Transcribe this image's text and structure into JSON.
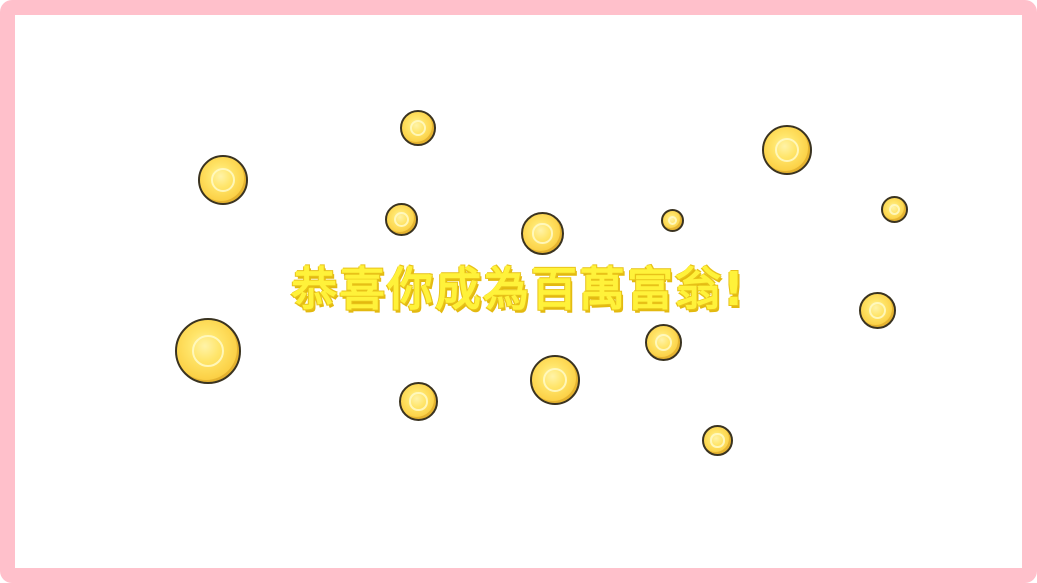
{
  "screen": {
    "message": "恭喜你成為百萬富翁!"
  },
  "colors": {
    "frame_border": "#ffc0cb",
    "background": "#ffffff",
    "message_text": "#fff23a",
    "coin_fill": "#fcd34a",
    "coin_outline": "#3a3320"
  },
  "icons": {
    "coin": "gold-coin-icon"
  }
}
